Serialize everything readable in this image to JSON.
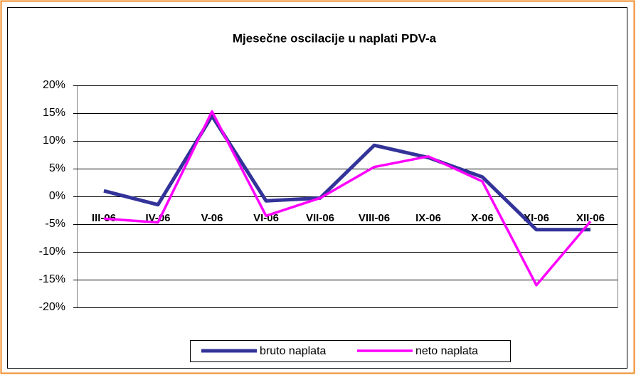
{
  "chart_data": {
    "type": "line",
    "title": "Mjesečne oscilacije u naplati PDV-a",
    "categories": [
      "III-06",
      "IV-06",
      "V-06",
      "VI-06",
      "VII-06",
      "VIII-06",
      "IX-06",
      "X-06",
      "XI-06",
      "XII-06"
    ],
    "series": [
      {
        "name": "bruto naplata",
        "color": "#333399",
        "values": [
          1,
          -1.5,
          14.5,
          -0.8,
          -0.3,
          9.2,
          7,
          3.5,
          -6,
          -6
        ]
      },
      {
        "name": "neto naplata",
        "color": "#ff00ff",
        "values": [
          -4,
          -4.7,
          15.3,
          -3.5,
          -0.3,
          5.3,
          7.2,
          2.7,
          -16,
          -4.5
        ]
      }
    ],
    "ylim": [
      -20,
      20
    ],
    "yticks": [
      {
        "value": -20,
        "label": "-20%"
      },
      {
        "value": -15,
        "label": "-15%"
      },
      {
        "value": -10,
        "label": "-10%"
      },
      {
        "value": -5,
        "label": "-5%"
      },
      {
        "value": 0,
        "label": "0%"
      },
      {
        "value": 5,
        "label": "5%"
      },
      {
        "value": 10,
        "label": "10%"
      },
      {
        "value": 15,
        "label": "15%"
      },
      {
        "value": 20,
        "label": "20%"
      }
    ],
    "grid": true
  }
}
